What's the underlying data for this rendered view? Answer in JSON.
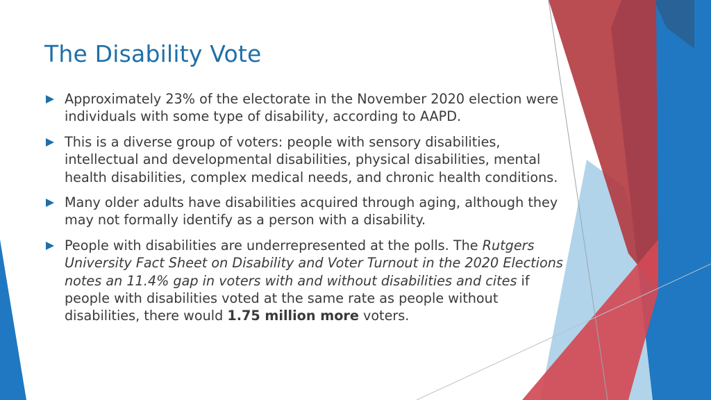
{
  "slide": {
    "title": "The Disability Vote",
    "bullets": [
      {
        "text": "Approximately 23% of the electorate in the November 2020 election were individuals with some type of disability, according to AAPD."
      },
      {
        "text": "This is a diverse group of voters: people with sensory disabilities, intellectual and developmental disabilities, physical disabilities, mental health disabilities, complex medical needs, and chronic health conditions."
      },
      {
        "text": "Many older adults have disabilities acquired through aging, although they may not formally identify as a person with a disability."
      },
      {
        "text_lead": "People with disabilities are underrepresented at the polls. The ",
        "text_italic": "Rutgers University Fact Sheet on Disability and Voter Turnout in the 2020 Elections notes an 11.4% gap in voters with and without disabilities and cites",
        "text_mid": " if people with disabilities voted at the same rate as people without disabilities, there would ",
        "text_bold": "1.75 million more",
        "text_end": " voters."
      }
    ]
  },
  "colors": {
    "title": "#1f6fa8",
    "body_text": "#3a3a3a",
    "bullet_arrow": "#1f6fa8",
    "deco_red": "#c0392b",
    "deco_blue": "#1f78c1",
    "deco_light_blue": "#a9cfe9"
  },
  "icons": {
    "bullet": "triangle-right-icon"
  }
}
